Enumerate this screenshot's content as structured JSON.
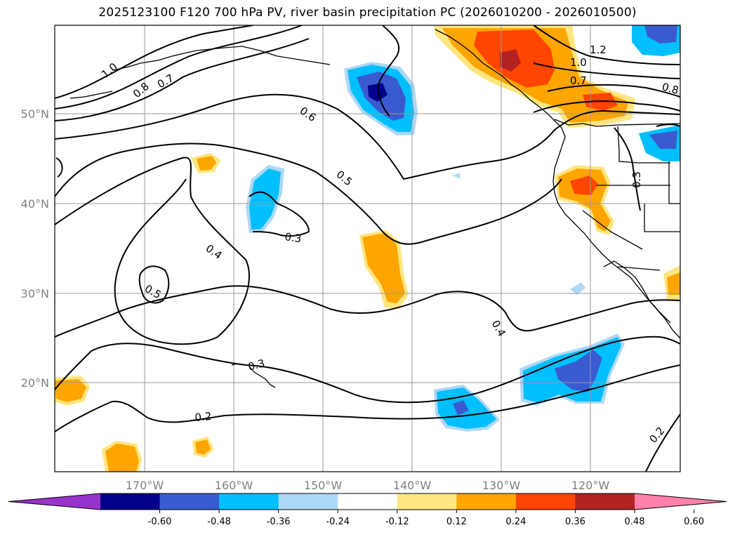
{
  "title": "2025123100 F120 700 hPa PV, river basin precipitation PC (2026010200 - 2026010500)",
  "axes": {
    "lat_labels": [
      "50°N",
      "40°N",
      "30°N",
      "20°N"
    ],
    "lon_labels": [
      "170°W",
      "160°W",
      "150°W",
      "140°W",
      "130°W",
      "120°W"
    ]
  },
  "contour_labels": [
    "1.0",
    "0.8",
    "0.7",
    "0.6",
    "0.5",
    "0.3",
    "0.4",
    "0.5",
    "0.3",
    "0.2",
    "0.4",
    "1.2",
    "1.0",
    "0.7",
    "0.8",
    "0.3",
    "0.2"
  ],
  "colorbar": {
    "tick_labels": [
      "-0.60",
      "-0.48",
      "-0.36",
      "-0.24",
      "-0.12",
      "0.12",
      "0.24",
      "0.36",
      "0.48",
      "0.60"
    ],
    "colors": [
      "#9932cc",
      "#00008b",
      "#3a5bd0",
      "#00bfff",
      "#add8f5",
      "#ffffff",
      "#ffe680",
      "#ffa500",
      "#ff4500",
      "#b22222",
      "#ff80a8"
    ]
  }
}
